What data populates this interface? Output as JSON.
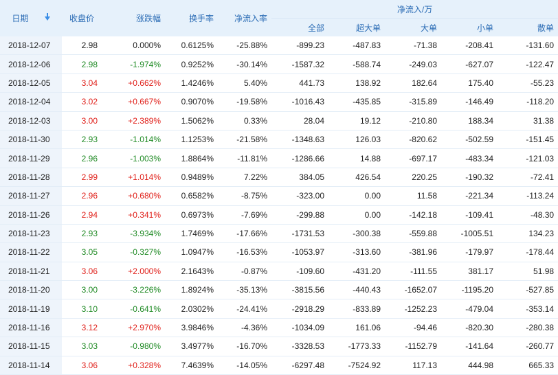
{
  "headers": {
    "date": "日期",
    "close": "收盘价",
    "change": "涨跌幅",
    "turnover": "换手率",
    "net_rate": "净流入率",
    "net_group": "净流入/万",
    "all": "全部",
    "super_large": "超大单",
    "large": "大单",
    "small": "小单",
    "retail": "散单"
  },
  "colors": {
    "up": "#e0201a",
    "down": "#1f8a24",
    "header_text": "#2b6cb5",
    "header_bg": "#e6f1fb"
  },
  "sort_icon": "arrow-down-icon",
  "rows": [
    {
      "date": "2018-12-07",
      "close": "2.98",
      "change": "0.000%",
      "turnover": "0.6125%",
      "net_rate": "-25.88%",
      "all": "-899.23",
      "super_large": "-487.83",
      "large": "-71.38",
      "small": "-208.41",
      "retail": "-131.60",
      "dir": "flat"
    },
    {
      "date": "2018-12-06",
      "close": "2.98",
      "change": "-1.974%",
      "turnover": "0.9252%",
      "net_rate": "-30.14%",
      "all": "-1587.32",
      "super_large": "-588.74",
      "large": "-249.03",
      "small": "-627.07",
      "retail": "-122.47",
      "dir": "down"
    },
    {
      "date": "2018-12-05",
      "close": "3.04",
      "change": "+0.662%",
      "turnover": "1.4246%",
      "net_rate": "5.40%",
      "all": "441.73",
      "super_large": "138.92",
      "large": "182.64",
      "small": "175.40",
      "retail": "-55.23",
      "dir": "up"
    },
    {
      "date": "2018-12-04",
      "close": "3.02",
      "change": "+0.667%",
      "turnover": "0.9070%",
      "net_rate": "-19.58%",
      "all": "-1016.43",
      "super_large": "-435.85",
      "large": "-315.89",
      "small": "-146.49",
      "retail": "-118.20",
      "dir": "up"
    },
    {
      "date": "2018-12-03",
      "close": "3.00",
      "change": "+2.389%",
      "turnover": "1.5062%",
      "net_rate": "0.33%",
      "all": "28.04",
      "super_large": "19.12",
      "large": "-210.80",
      "small": "188.34",
      "retail": "31.38",
      "dir": "up"
    },
    {
      "date": "2018-11-30",
      "close": "2.93",
      "change": "-1.014%",
      "turnover": "1.1253%",
      "net_rate": "-21.58%",
      "all": "-1348.63",
      "super_large": "126.03",
      "large": "-820.62",
      "small": "-502.59",
      "retail": "-151.45",
      "dir": "down"
    },
    {
      "date": "2018-11-29",
      "close": "2.96",
      "change": "-1.003%",
      "turnover": "1.8864%",
      "net_rate": "-11.81%",
      "all": "-1286.66",
      "super_large": "14.88",
      "large": "-697.17",
      "small": "-483.34",
      "retail": "-121.03",
      "dir": "down"
    },
    {
      "date": "2018-11-28",
      "close": "2.99",
      "change": "+1.014%",
      "turnover": "0.9489%",
      "net_rate": "7.22%",
      "all": "384.05",
      "super_large": "426.54",
      "large": "220.25",
      "small": "-190.32",
      "retail": "-72.41",
      "dir": "up"
    },
    {
      "date": "2018-11-27",
      "close": "2.96",
      "change": "+0.680%",
      "turnover": "0.6582%",
      "net_rate": "-8.75%",
      "all": "-323.00",
      "super_large": "0.00",
      "large": "11.58",
      "small": "-221.34",
      "retail": "-113.24",
      "dir": "up"
    },
    {
      "date": "2018-11-26",
      "close": "2.94",
      "change": "+0.341%",
      "turnover": "0.6973%",
      "net_rate": "-7.69%",
      "all": "-299.88",
      "super_large": "0.00",
      "large": "-142.18",
      "small": "-109.41",
      "retail": "-48.30",
      "dir": "up"
    },
    {
      "date": "2018-11-23",
      "close": "2.93",
      "change": "-3.934%",
      "turnover": "1.7469%",
      "net_rate": "-17.66%",
      "all": "-1731.53",
      "super_large": "-300.38",
      "large": "-559.88",
      "small": "-1005.51",
      "retail": "134.23",
      "dir": "down"
    },
    {
      "date": "2018-11-22",
      "close": "3.05",
      "change": "-0.327%",
      "turnover": "1.0947%",
      "net_rate": "-16.53%",
      "all": "-1053.97",
      "super_large": "-313.60",
      "large": "-381.96",
      "small": "-179.97",
      "retail": "-178.44",
      "dir": "down"
    },
    {
      "date": "2018-11-21",
      "close": "3.06",
      "change": "+2.000%",
      "turnover": "2.1643%",
      "net_rate": "-0.87%",
      "all": "-109.60",
      "super_large": "-431.20",
      "large": "-111.55",
      "small": "381.17",
      "retail": "51.98",
      "dir": "up"
    },
    {
      "date": "2018-11-20",
      "close": "3.00",
      "change": "-3.226%",
      "turnover": "1.8924%",
      "net_rate": "-35.13%",
      "all": "-3815.56",
      "super_large": "-440.43",
      "large": "-1652.07",
      "small": "-1195.20",
      "retail": "-527.85",
      "dir": "down"
    },
    {
      "date": "2018-11-19",
      "close": "3.10",
      "change": "-0.641%",
      "turnover": "2.0302%",
      "net_rate": "-24.41%",
      "all": "-2918.29",
      "super_large": "-833.89",
      "large": "-1252.23",
      "small": "-479.04",
      "retail": "-353.14",
      "dir": "down"
    },
    {
      "date": "2018-11-16",
      "close": "3.12",
      "change": "+2.970%",
      "turnover": "3.9846%",
      "net_rate": "-4.36%",
      "all": "-1034.09",
      "super_large": "161.06",
      "large": "-94.46",
      "small": "-820.30",
      "retail": "-280.38",
      "dir": "up"
    },
    {
      "date": "2018-11-15",
      "close": "3.03",
      "change": "-0.980%",
      "turnover": "3.4977%",
      "net_rate": "-16.70%",
      "all": "-3328.53",
      "super_large": "-1773.33",
      "large": "-1152.79",
      "small": "-141.64",
      "retail": "-260.77",
      "dir": "down"
    },
    {
      "date": "2018-11-14",
      "close": "3.06",
      "change": "+0.328%",
      "turnover": "7.4639%",
      "net_rate": "-14.05%",
      "all": "-6297.48",
      "super_large": "-7524.92",
      "large": "117.13",
      "small": "444.98",
      "retail": "665.33",
      "dir": "up"
    }
  ]
}
